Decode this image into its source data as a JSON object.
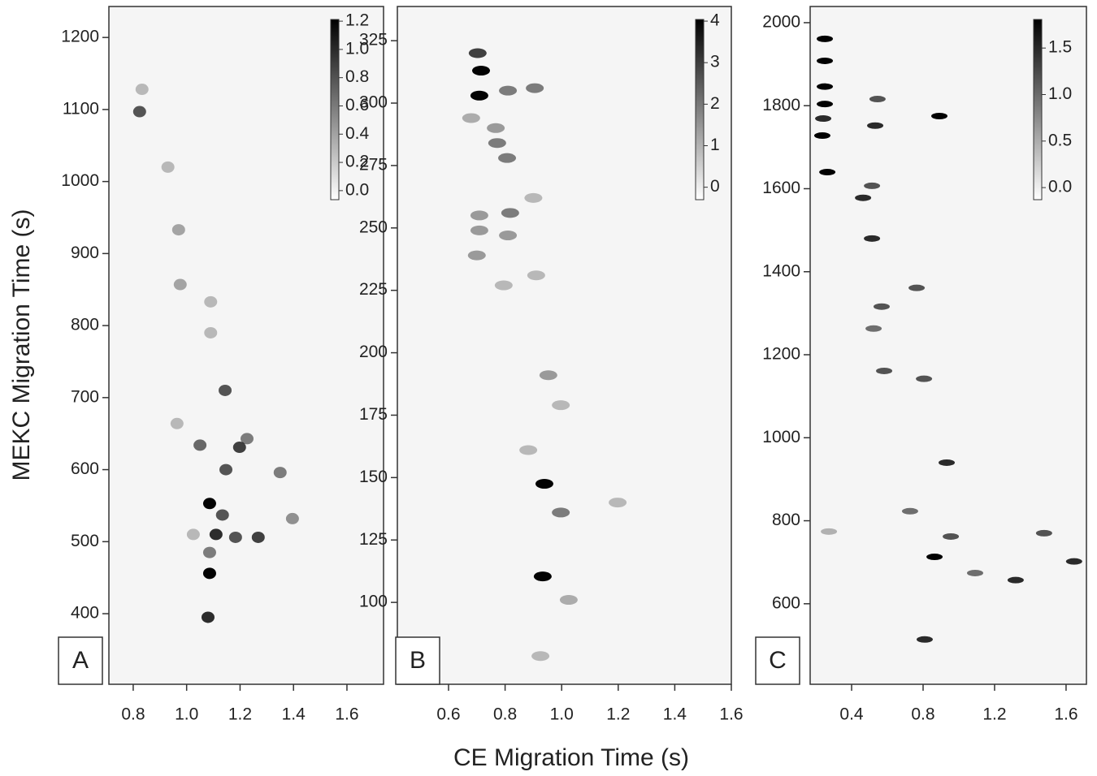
{
  "chart_data": [
    {
      "type": "scatter",
      "label": "A",
      "y_label": "MEKC Migration Time (s)",
      "color": "#000000",
      "xlim": [
        0.709,
        1.737
      ],
      "ylim": [
        302,
        1243
      ],
      "xticks": [
        0.8,
        {
          "value": 1.0,
          "label": "1.0"
        },
        1.2,
        1.4,
        1.6
      ],
      "yticks": [
        400,
        500,
        600,
        700,
        800,
        900,
        1000,
        1100,
        1200
      ],
      "colorbar": {
        "lim": [
          -0.064,
          1.212
        ],
        "ticks": [
          {
            "value": 0,
            "label": "0.0"
          },
          0.2,
          0.4,
          0.6,
          0.8,
          {
            "value": 1,
            "label": "1.0"
          },
          1.2
        ]
      },
      "x": [
        0.824,
        1.086,
        1.086,
        1.08,
        1.11,
        1.134,
        1.198,
        1.144,
        1.268,
        1.226,
        1.05,
        1.147,
        1.396,
        0.97,
        0.976,
        0.93,
        1.09,
        1.09,
        0.964,
        1.183,
        1.35,
        1.025,
        0.833,
        1.086
      ],
      "values": [
        1097,
        553,
        456,
        395,
        510,
        537,
        631,
        710,
        506,
        643,
        634,
        600,
        532,
        933,
        857,
        1020,
        833,
        790,
        664,
        506,
        596,
        510,
        1128,
        485
      ],
      "intensity": [
        0.8,
        1.2,
        1.2,
        1.0,
        1.0,
        0.8,
        0.9,
        0.8,
        0.9,
        0.6,
        0.7,
        0.8,
        0.5,
        0.4,
        0.4,
        0.3,
        0.3,
        0.3,
        0.3,
        0.8,
        0.6,
        0.3,
        0.3,
        0.6
      ]
    },
    {
      "type": "scatter",
      "label": "B",
      "x_label": "CE Migration Time (s)",
      "color": "#000000",
      "xlim": [
        0.419,
        1.6
      ],
      "ylim": [
        67.2,
        338.7
      ],
      "xticks": [
        0.6,
        0.8,
        {
          "value": 1.0,
          "label": "1.0"
        },
        1.2,
        1.4,
        1.6
      ],
      "yticks": [
        100,
        125,
        150,
        175,
        200,
        225,
        250,
        275,
        300,
        325
      ],
      "colorbar": {
        "lim": [
          -0.3,
          4.04
        ],
        "ticks": [
          0,
          1,
          2,
          3,
          4
        ]
      },
      "x": [
        0.709,
        0.715,
        0.703,
        0.81,
        0.905,
        0.772,
        0.807,
        0.818,
        0.709,
        0.709,
        0.7,
        0.81,
        0.9,
        0.767,
        0.68,
        0.939,
        0.997,
        0.933,
        0.953,
        1.198,
        0.925,
        1.025,
        0.882,
        0.795,
        0.997,
        0.91
      ],
      "values": [
        303,
        313,
        320,
        305,
        306,
        284,
        278,
        256,
        255,
        249,
        239,
        247,
        262,
        290,
        294,
        147.5,
        136,
        110.4,
        191,
        140,
        78.5,
        101,
        161,
        227,
        179,
        231
      ],
      "intensity": [
        4,
        4,
        3,
        2,
        2,
        2,
        2,
        2,
        1.5,
        1.5,
        1.5,
        1.5,
        1,
        1.5,
        1.2,
        4,
        2,
        4,
        1.5,
        1,
        1,
        1.2,
        1,
        1,
        1,
        1
      ]
    },
    {
      "type": "scatter",
      "label": "C",
      "color": "#000000",
      "xlim": [
        0.168,
        1.714
      ],
      "ylim": [
        406,
        2039
      ],
      "xticks": [
        0.4,
        0.8,
        1.2,
        1.6
      ],
      "yticks": [
        600,
        800,
        1000,
        1200,
        1400,
        1600,
        1800,
        2000
      ],
      "colorbar": {
        "lim": [
          -0.13,
          1.807
        ],
        "ticks": [
          {
            "value": 0,
            "label": "0.0"
          },
          0.5,
          {
            "value": 1,
            "label": "1.0"
          },
          1.5
        ]
      },
      "x": [
        0.25,
        0.25,
        0.25,
        0.25,
        0.241,
        0.236,
        0.264,
        0.545,
        0.532,
        0.514,
        0.464,
        0.514,
        0.568,
        0.523,
        0.582,
        0.764,
        0.891,
        0.805,
        0.932,
        0.864,
        0.955,
        1.091,
        1.318,
        1.477,
        1.645,
        0.809,
        0.273,
        0.727
      ],
      "values": [
        1961,
        1908,
        1846,
        1804,
        1769,
        1728,
        1640,
        1816,
        1752,
        1607,
        1578,
        1480,
        1316,
        1263,
        1161,
        1361,
        1775,
        1142,
        940,
        713,
        762,
        674,
        657,
        770,
        702,
        514,
        774,
        823
      ],
      "intensity": [
        1.8,
        1.8,
        1.8,
        1.8,
        1.5,
        1.8,
        1.8,
        1.2,
        1.5,
        1.2,
        1.5,
        1.5,
        1.2,
        1,
        1.2,
        1.2,
        1.8,
        1.2,
        1.5,
        1.8,
        1.2,
        1,
        1.5,
        1.2,
        1.5,
        1.5,
        0.5,
        1.0
      ]
    }
  ]
}
